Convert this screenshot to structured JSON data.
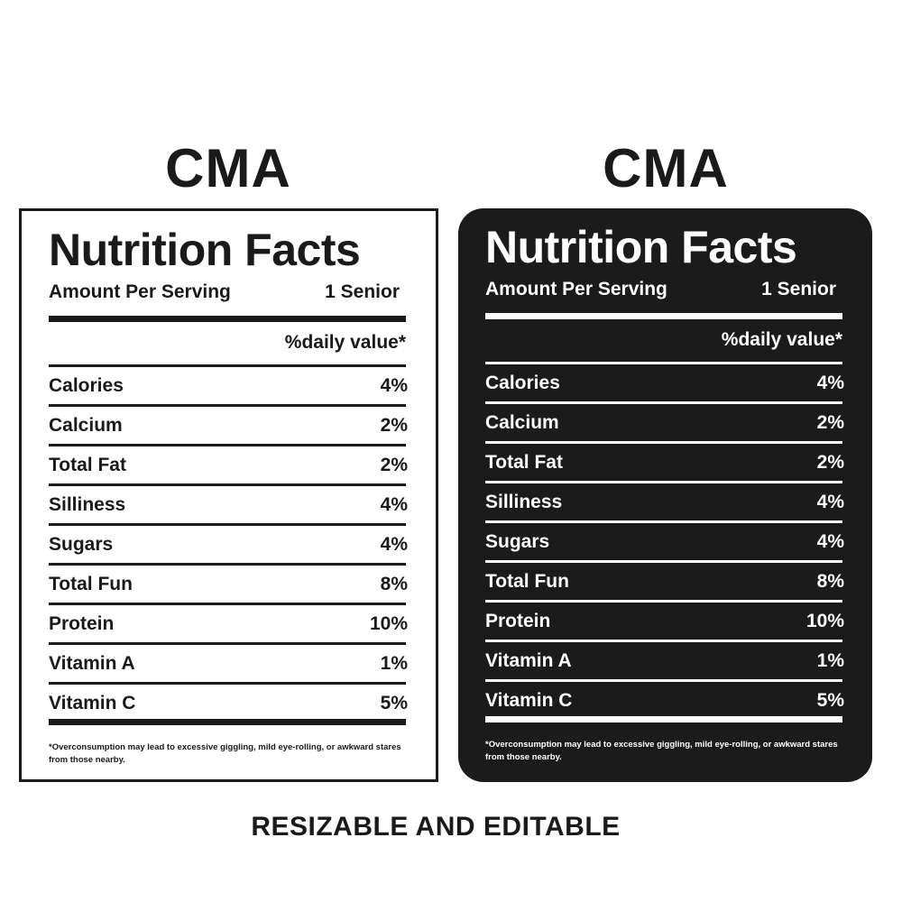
{
  "heading_left": "CMA",
  "heading_right": "CMA",
  "label": {
    "title": "Nutrition Facts",
    "amount_label": "Amount Per Serving",
    "amount_value": "1 Senior",
    "dv_header": "%daily value*",
    "rows": [
      {
        "name": "Calories",
        "value": "4%"
      },
      {
        "name": "Calcium",
        "value": "2%"
      },
      {
        "name": "Total Fat",
        "value": "2%"
      },
      {
        "name": "Silliness",
        "value": "4%"
      },
      {
        "name": "Sugars",
        "value": "4%"
      },
      {
        "name": "Total Fun",
        "value": "8%"
      },
      {
        "name": "Protein",
        "value": "10%"
      },
      {
        "name": "Vitamin A",
        "value": "1%"
      },
      {
        "name": "Vitamin C",
        "value": "5%"
      }
    ],
    "footnote": "*Overconsumption may lead to excessive giggling, mild eye-rolling, or awkward stares from those nearby."
  },
  "tagline": "RESIZABLE AND EDITABLE",
  "colors": {
    "ink": "#1a1a1a",
    "dark_panel": "#1b1b1b",
    "background": "#ffffff"
  }
}
